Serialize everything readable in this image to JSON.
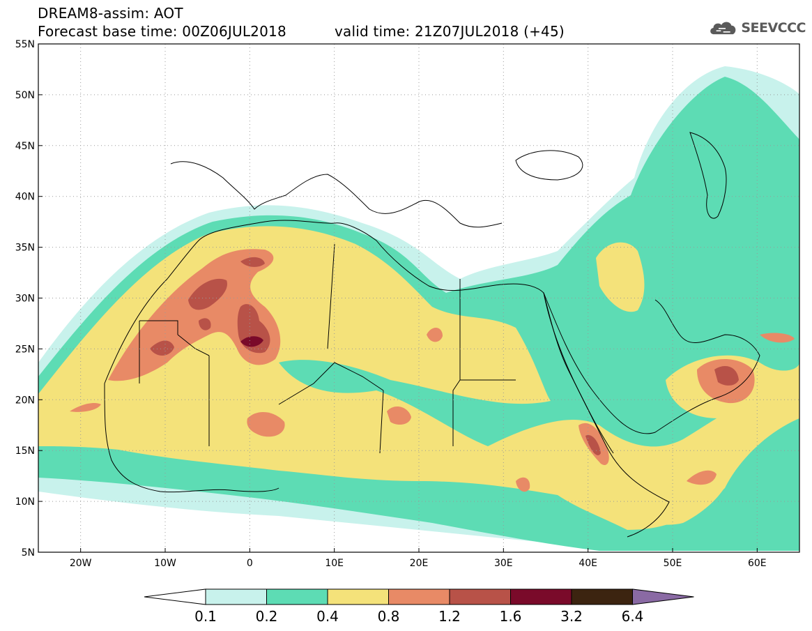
{
  "header": {
    "title": "DREAM8-assim: AOT",
    "base_time": "Forecast base time: 00Z06JUL2018",
    "valid_time": "valid time: 21Z07JUL2018 (+45)",
    "logo_text": "SEEVCCC"
  },
  "map": {
    "lon_range": [
      -25,
      65
    ],
    "lat_range": [
      5,
      55
    ],
    "lat_ticks": [
      "5N",
      "10N",
      "15N",
      "20N",
      "25N",
      "30N",
      "35N",
      "40N",
      "45N",
      "50N",
      "55N"
    ],
    "lon_ticks": [
      "20W",
      "10W",
      "0",
      "10E",
      "20E",
      "30E",
      "40E",
      "50E",
      "60E"
    ],
    "lat_values": [
      5,
      10,
      15,
      20,
      25,
      30,
      35,
      40,
      45,
      50,
      55
    ],
    "lon_values": [
      -20,
      -10,
      0,
      10,
      20,
      30,
      40,
      50,
      60
    ]
  },
  "colorbar": {
    "levels": [
      "0.1",
      "0.2",
      "0.4",
      "0.8",
      "1.2",
      "1.6",
      "3.2",
      "6.4"
    ],
    "colors": [
      "#c8f2ec",
      "#5ddcb4",
      "#f4e27a",
      "#e88a66",
      "#b85248",
      "#7a0a2a",
      "#3c2410",
      "#8a6aa4"
    ],
    "under_color": "#ffffff",
    "over_color": "#8a6aa4"
  },
  "colors": {
    "ocean": "#ffffff",
    "land": "#ffffff"
  }
}
